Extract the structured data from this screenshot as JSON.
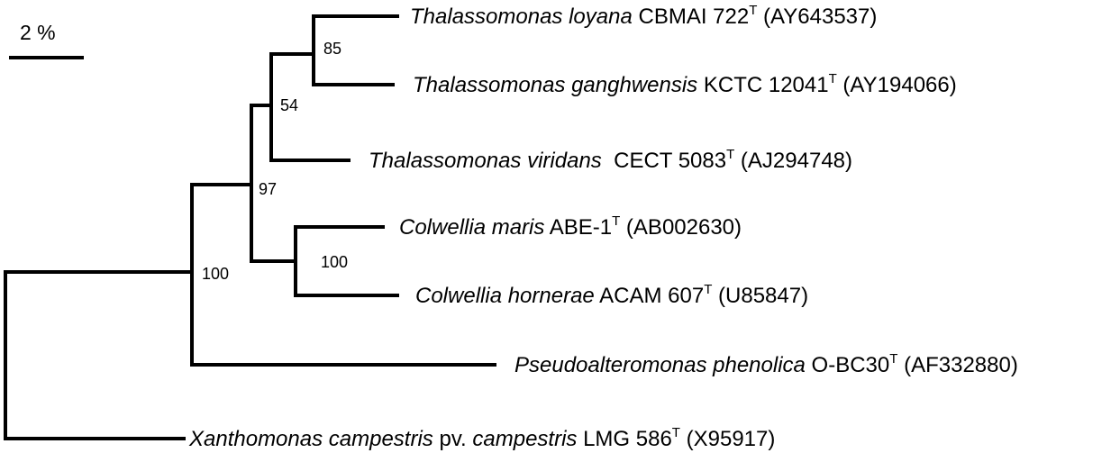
{
  "scale_bar": {
    "label": "2 %"
  },
  "bootstrap": {
    "n85": "85",
    "n54": "54",
    "n97": "97",
    "n100_colwellia": "100",
    "n100_root": "100"
  },
  "taxa": {
    "loyana": {
      "species": "Thalassomonas loyana",
      "strain": " CBMAI 722",
      "type_mark": "T",
      "accession": " (AY643537)"
    },
    "ganghwensis": {
      "species": "Thalassomonas ganghwensis",
      "strain": " KCTC 12041",
      "type_mark": "T",
      "accession": " (AY194066)"
    },
    "viridans": {
      "species": "Thalassomonas viridans",
      "strain": "  CECT 5083",
      "type_mark": "T",
      "accession": " (AJ294748)"
    },
    "maris": {
      "species": "Colwellia maris",
      "strain": " ABE-1",
      "type_mark": "T",
      "accession": " (AB002630)"
    },
    "hornerae": {
      "species": "Colwellia hornerae",
      "strain": " ACAM 607",
      "type_mark": "T",
      "accession": " (U85847)"
    },
    "phenolica": {
      "species": "Pseudoalteromonas phenolica",
      "strain": " O-BC30",
      "type_mark": "T",
      "accession": " (AF332880)"
    },
    "xanthomonas": {
      "species": "Xanthomonas campestris",
      "pathovar_abbr": " pv. ",
      "pathovar": "campestris",
      "strain": " LMG 586",
      "type_mark": "T",
      "accession": " (X95917)"
    }
  }
}
